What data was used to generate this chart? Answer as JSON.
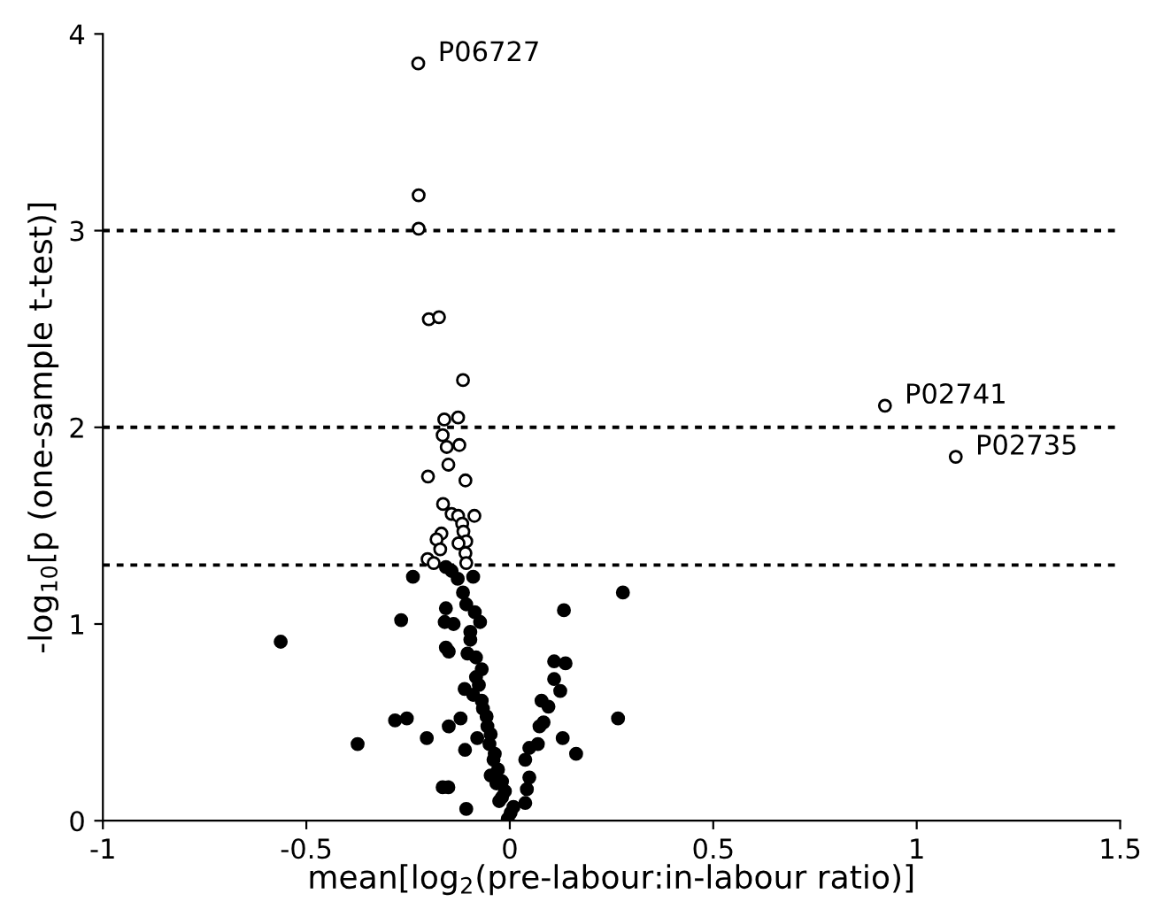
{
  "chart_data": {
    "type": "scatter",
    "xlabel": "mean[log$_{2}$(pre-labour:in-labour ratio)]",
    "ylabel": "-log$_{10}$[p (one-sample t-test)]",
    "xlim": [
      -1,
      1.5
    ],
    "xticks": [
      -1,
      -0.5,
      0,
      0.5,
      1,
      1.5
    ],
    "ylim": [
      0,
      4
    ],
    "yticks": [
      0,
      1,
      2,
      3,
      4
    ],
    "grid": false,
    "legend": false,
    "marker": "circle",
    "ref_lines": [
      {
        "axis": "y",
        "value": 3,
        "color": "#000000",
        "line_style": "dotted"
      },
      {
        "axis": "y",
        "value": 2,
        "color": "#000000",
        "line_style": "dotted"
      },
      {
        "axis": "y",
        "value": 1.3,
        "color": "#000000",
        "line_style": "dotted"
      }
    ],
    "annotations": [
      {
        "text": "P06727",
        "x": -0.225,
        "y": 3.85
      },
      {
        "text": "P02741",
        "x": 0.922,
        "y": 2.11
      },
      {
        "text": "P02735",
        "x": 1.096,
        "y": 1.85
      }
    ],
    "series": [
      {
        "color": "#ffffff",
        "x": [
          -0.225,
          -0.224,
          -0.224,
          0.922,
          1.096,
          -0.199,
          -0.174,
          -0.115,
          -0.161,
          -0.127,
          -0.165,
          -0.124,
          -0.155,
          -0.151,
          -0.201,
          -0.109,
          -0.164,
          -0.143,
          -0.127,
          -0.087,
          -0.117,
          -0.114,
          -0.168,
          -0.18,
          -0.107,
          -0.126,
          -0.171,
          -0.109,
          -0.202,
          -0.187,
          -0.107
        ],
        "values": [
          3.85,
          3.18,
          3.01,
          2.11,
          1.85,
          2.55,
          2.56,
          2.24,
          2.04,
          2.05,
          1.96,
          1.91,
          1.9,
          1.81,
          1.75,
          1.73,
          1.61,
          1.56,
          1.55,
          1.55,
          1.51,
          1.47,
          1.46,
          1.43,
          1.42,
          1.41,
          1.38,
          1.36,
          1.33,
          1.31,
          1.31
        ]
      },
      {
        "color": "#000000",
        "x": [
          -0.563,
          -0.238,
          -0.267,
          -0.374,
          -0.282,
          -0.253,
          -0.204,
          -0.165,
          -0.151,
          -0.107,
          -0.15,
          -0.121,
          -0.11,
          -0.157,
          -0.16,
          -0.138,
          -0.157,
          -0.15,
          -0.157,
          -0.143,
          -0.128,
          -0.115,
          -0.107,
          -0.086,
          -0.073,
          -0.097,
          -0.104,
          -0.083,
          -0.069,
          -0.111,
          -0.09,
          -0.069,
          -0.057,
          -0.08,
          -0.05,
          -0.04,
          -0.047,
          -0.033,
          -0.019,
          -0.005,
          0.009,
          0.038,
          0.042,
          0.048,
          0.038,
          0.048,
          0.069,
          0.073,
          0.083,
          0.078,
          0.095,
          0.109,
          0.124,
          0.109,
          0.137,
          0.133,
          0.13,
          0.163,
          0.266,
          0.278,
          -0.097,
          -0.083,
          -0.076,
          -0.066,
          -0.055,
          -0.047,
          -0.037,
          -0.029,
          -0.019,
          -0.012,
          -0.026,
          0.002,
          -0.09
        ],
        "values": [
          0.91,
          1.24,
          1.02,
          0.39,
          0.51,
          0.52,
          0.42,
          0.17,
          0.17,
          0.06,
          0.48,
          0.52,
          0.36,
          1.08,
          1.01,
          1.0,
          0.88,
          0.86,
          1.29,
          1.27,
          1.23,
          1.16,
          1.1,
          1.06,
          1.01,
          0.96,
          0.85,
          0.83,
          0.77,
          0.67,
          0.64,
          0.61,
          0.53,
          0.42,
          0.39,
          0.31,
          0.23,
          0.19,
          0.12,
          0.01,
          0.07,
          0.09,
          0.16,
          0.22,
          0.31,
          0.37,
          0.39,
          0.48,
          0.5,
          0.61,
          0.58,
          0.72,
          0.66,
          0.81,
          0.8,
          1.07,
          0.42,
          0.34,
          0.52,
          1.16,
          0.92,
          0.73,
          0.69,
          0.57,
          0.48,
          0.44,
          0.34,
          0.26,
          0.2,
          0.15,
          0.1,
          0.04,
          1.24
        ]
      }
    ]
  }
}
